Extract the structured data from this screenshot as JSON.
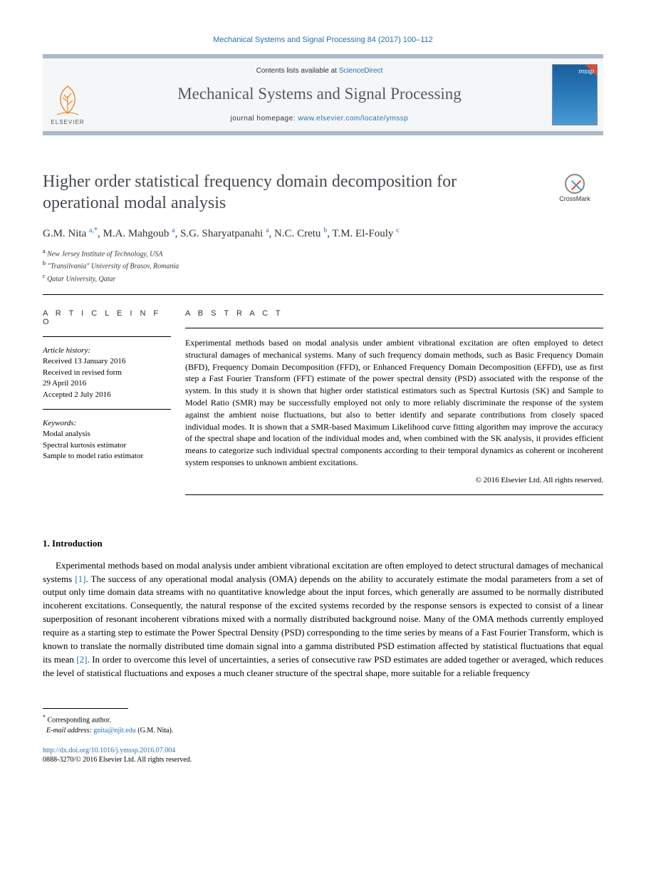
{
  "citation_header": "Mechanical Systems and Signal Processing 84 (2017) 100–112",
  "masthead": {
    "contents_prefix": "Contents lists available at ",
    "contents_link": "ScienceDirect",
    "journal_name": "Mechanical Systems and Signal Processing",
    "homepage_prefix": "journal homepage: ",
    "homepage_link": "www.elsevier.com/locate/ymssp",
    "publisher_name": "ELSEVIER",
    "cover_label": "mssp"
  },
  "crossmark_label": "CrossMark",
  "title": "Higher order statistical frequency domain decomposition for operational modal analysis",
  "authors_html": "G.M. Nita <sup class='aff-sup'>a,*</sup>, M.A. Mahgoub <sup class='aff-sup'>a</sup>, S.G. Sharyatpanahi <sup class='aff-sup'>a</sup>, N.C. Cretu <sup class='aff-sup'>b</sup>, T.M. El-Fouly <sup class='aff-sup'>c</sup>",
  "affiliations": [
    {
      "sup": "a",
      "text": "New Jersey Institute of Technology, USA"
    },
    {
      "sup": "b",
      "text": "\"Transilvania\" University of Brasov, Romania"
    },
    {
      "sup": "c",
      "text": "Qatar University, Qatar"
    }
  ],
  "info": {
    "label": "A R T I C L E   I N F O",
    "history_label": "Article history:",
    "received": "Received 13 January 2016",
    "revised": "Received in revised form\n29 April 2016",
    "accepted": "Accepted 2 July 2016",
    "keywords_label": "Keywords:",
    "keywords": [
      "Modal analysis",
      "Spectral kurtosis estimator",
      "Sample to model ratio estimator"
    ]
  },
  "abstract": {
    "label": "A B S T R A C T",
    "text": "Experimental methods based on modal analysis under ambient vibrational excitation are often employed to detect structural damages of mechanical systems. Many of such frequency domain methods, such as Basic Frequency Domain (BFD), Frequency Domain Decomposition (FFD), or Enhanced Frequency Domain Decomposition (EFFD), use as first step a Fast Fourier Transform (FFT) estimate of the power spectral density (PSD) associated with the response of the system. In this study it is shown that higher order statistical estimators such as Spectral Kurtosis (SK) and Sample to Model Ratio (SMR) may be successfully employed not only to more reliably discriminate the response of the system against the ambient noise fluctuations, but also to better identify and separate contributions from closely spaced individual modes. It is shown that a SMR-based Maximum Likelihood curve fitting algorithm may improve the accuracy of the spectral shape and location of the individual modes and, when combined with the SK analysis, it provides efficient means to categorize such individual spectral components according to their temporal dynamics as coherent or incoherent system responses to unknown ambient excitations.",
    "copyright": "© 2016 Elsevier Ltd. All rights reserved."
  },
  "section1": {
    "heading": "1. Introduction",
    "paragraph": "Experimental methods based on modal analysis under ambient vibrational excitation are often employed to detect structural damages of mechanical systems [1]. The success of any operational modal analysis (OMA) depends on the ability to accurately estimate the modal parameters from a set of output only time domain data streams with no quantitative knowledge about the input forces, which generally are assumed to be normally distributed incoherent excitations. Consequently, the natural response of the excited systems recorded by the response sensors is expected to consist of a linear superposition of resonant incoherent vibrations mixed with a normally distributed background noise. Many of the OMA methods currently employed require as a starting step to estimate the Power Spectral Density (PSD) corresponding to the time series by means of a Fast Fourier Transform, which is known to translate the normally distributed time domain signal into a gamma distributed PSD estimation affected by statistical fluctuations that equal its mean [2]. In order to overcome this level of uncertainties, a series of consecutive raw PSD estimates are added together or averaged, which reduces the level of statistical fluctuations and exposes a much cleaner structure of the spectral shape, more suitable for a reliable frequency"
  },
  "footnote": {
    "corresponding": "Corresponding author.",
    "email_label": "E-mail address: ",
    "email": "gnita@njit.edu",
    "email_author": " (G.M. Nita)."
  },
  "doi": {
    "url": "http://dx.doi.org/10.1016/j.ymssp.2016.07.004",
    "issn_line": "0888-3270/© 2016 Elsevier Ltd. All rights reserved."
  },
  "colors": {
    "link": "#2a6fb5",
    "rule": "#abb9c8",
    "title_gray": "#454a50"
  }
}
